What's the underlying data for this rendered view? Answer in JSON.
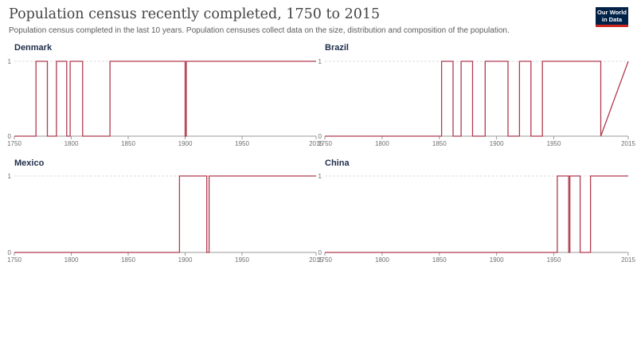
{
  "header": {
    "title": "Population census recently completed, 1750 to 2015",
    "subtitle": "Population census completed in the last 10 years. Population censuses collect data on the size, distribution and composition of the population.",
    "logo_line1": "Our World",
    "logo_line2": "in Data"
  },
  "colors": {
    "line": "#b13a4e",
    "grid": "#dddddd",
    "axis": "#9a9a9a",
    "label": "#6e6e6e",
    "panel_title": "#1f2d4a"
  },
  "chart_data": [
    {
      "type": "line",
      "title": "Denmark",
      "xlim": [
        1750,
        2015
      ],
      "ylim": [
        0,
        1
      ],
      "xticks": [
        1750,
        1800,
        1850,
        1900,
        1950,
        2015
      ],
      "yticks": [
        0,
        1
      ],
      "x": [
        1750,
        1769,
        1769,
        1779,
        1779,
        1787,
        1787,
        1796,
        1796,
        1799,
        1799,
        1810,
        1810,
        1834,
        1834,
        1900,
        1900,
        1901,
        1901,
        2015
      ],
      "y": [
        0,
        0,
        1,
        1,
        0,
        0,
        1,
        1,
        0,
        0,
        1,
        1,
        0,
        0,
        1,
        1,
        0,
        0,
        1,
        1
      ]
    },
    {
      "type": "line",
      "title": "Brazil",
      "xlim": [
        1750,
        2015
      ],
      "ylim": [
        0,
        1
      ],
      "xticks": [
        1750,
        1800,
        1850,
        1900,
        1950,
        2015
      ],
      "yticks": [
        0,
        1
      ],
      "x": [
        1750,
        1852,
        1852,
        1862,
        1862,
        1869,
        1869,
        1879,
        1879,
        1890,
        1890,
        1910,
        1910,
        1920,
        1920,
        1930,
        1930,
        1940,
        1940,
        1991,
        1991,
        2015
      ],
      "y": [
        0,
        0,
        1,
        1,
        0,
        0,
        1,
        1,
        0,
        0,
        1,
        1,
        0,
        0,
        1,
        1,
        0,
        0,
        1,
        1,
        0,
        1
      ]
    },
    {
      "type": "line",
      "title": "Mexico",
      "xlim": [
        1750,
        2015
      ],
      "ylim": [
        0,
        1
      ],
      "xticks": [
        1750,
        1800,
        1850,
        1900,
        1950,
        2015
      ],
      "yticks": [
        0,
        1
      ],
      "x": [
        1750,
        1895,
        1895,
        1919,
        1919,
        1921,
        1921,
        2015
      ],
      "y": [
        0,
        0,
        1,
        1,
        0,
        0,
        1,
        1
      ]
    },
    {
      "type": "line",
      "title": "China",
      "xlim": [
        1750,
        2015
      ],
      "ylim": [
        0,
        1
      ],
      "xticks": [
        1750,
        1800,
        1850,
        1900,
        1950,
        2015
      ],
      "yticks": [
        0,
        1
      ],
      "x": [
        1750,
        1953,
        1953,
        1963,
        1963,
        1964,
        1964,
        1973,
        1973,
        1982,
        1982,
        2015
      ],
      "y": [
        0,
        0,
        1,
        1,
        0,
        0,
        1,
        1,
        0,
        0,
        1,
        1
      ]
    }
  ]
}
